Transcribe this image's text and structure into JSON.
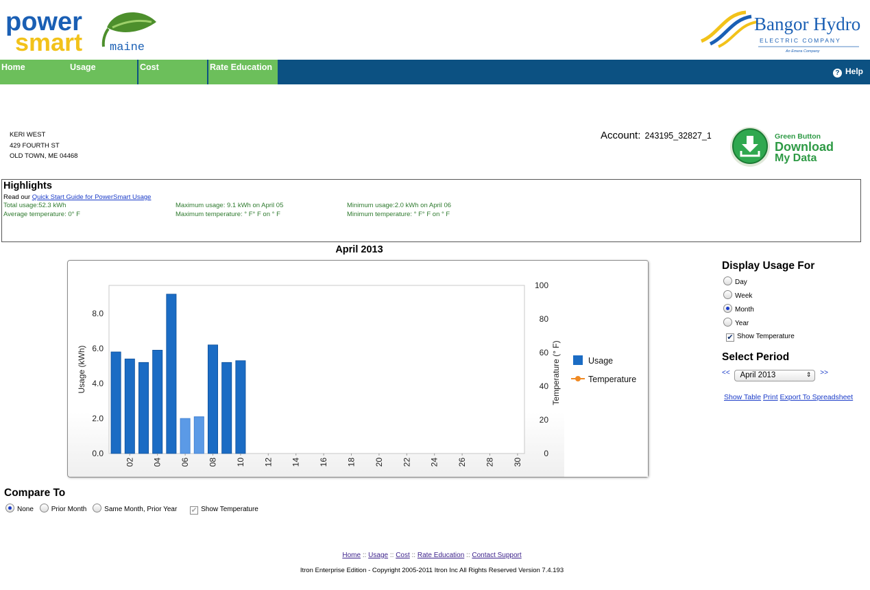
{
  "header": {
    "powersmart_logo": {
      "line1": "power",
      "line2": "smart",
      "suffix": "maine",
      "icon": "leaf-icon"
    },
    "bangor_logo": {
      "name": "Bangor Hydro",
      "subtitle": "ELECTRIC  COMPANY",
      "tagline": "An Emera Company",
      "icon": "swoosh-icon"
    }
  },
  "nav": {
    "tabs": [
      "Home",
      "Usage",
      "Cost",
      "Rate Education"
    ],
    "help": "Help",
    "help_icon": "question-circle-icon"
  },
  "customer": {
    "name": "KERI WEST",
    "address1": "429 FOURTH ST",
    "address2": "OLD TOWN, ME 04468"
  },
  "account": {
    "label": "Account:",
    "number": "243195_32827_1"
  },
  "green_button": {
    "line1": "Green Button",
    "line2": "Download",
    "line3": "My Data",
    "icon": "download-arrow-icon"
  },
  "highlights": {
    "title": "Highlights",
    "read_prefix": "Read our",
    "guide_link": "Quick Start Guide for PowerSmart Usage",
    "total_usage": "Total usage:52.3 kWh",
    "max_usage": "Maximum usage: 9.1 kWh on April 05",
    "min_usage": "Minimum usage:2.0 kWh on April 06",
    "avg_temp": "Average temperature: 0° F",
    "max_temp": "Maximum temperature: ° F° F on ° F",
    "min_temp": "Minimum temperature: ° F° F on ° F"
  },
  "chart_data": {
    "type": "bar",
    "title": "April 2013",
    "xlabel": "",
    "ylabel": "Usage (kWh)",
    "y2label": "Temperature (° F)",
    "ylim": [
      0,
      9.6
    ],
    "y2lim": [
      0,
      100
    ],
    "yticks": [
      "0.0",
      "2.0",
      "4.0",
      "6.0",
      "8.0"
    ],
    "y2ticks": [
      "0",
      "20",
      "40",
      "60",
      "80",
      "100"
    ],
    "x_ticks": [
      "02",
      "04",
      "06",
      "08",
      "10",
      "12",
      "14",
      "16",
      "18",
      "20",
      "22",
      "24",
      "26",
      "28",
      "30"
    ],
    "days": 30,
    "series": [
      {
        "name": "Usage",
        "color": "#1b6cc4",
        "light_color": "#5b9ae6",
        "values": [
          5.8,
          5.4,
          5.2,
          5.9,
          9.1,
          2.0,
          2.1,
          6.2,
          5.2,
          5.3
        ],
        "light_days": [
          6,
          7
        ]
      },
      {
        "name": "Temperature",
        "color": "#f08a24",
        "values": []
      }
    ],
    "legend": "right",
    "grid": false
  },
  "display_usage": {
    "title": "Display Usage For",
    "options": [
      "Day",
      "Week",
      "Month",
      "Year"
    ],
    "selected": "Month",
    "show_temperature": "Show Temperature"
  },
  "select_period": {
    "title": "Select Period",
    "prev": "<<",
    "next": ">>",
    "value": "April 2013",
    "show_table": "Show Table",
    "print": "Print",
    "export": "Export To Spreadsheet"
  },
  "compare": {
    "title": "Compare To",
    "options": [
      "None",
      "Prior Month",
      "Same Month, Prior Year"
    ],
    "selected": "None",
    "show_temperature": "Show Temperature"
  },
  "footer": {
    "links": [
      "Home",
      "Usage",
      "Cost",
      "Rate Education",
      "Contact Support"
    ],
    "separator": "::",
    "copyright": "Itron Enterprise Edition - Copyright 2005-2011 Itron Inc All Rights Reserved Version 7.4.193"
  }
}
